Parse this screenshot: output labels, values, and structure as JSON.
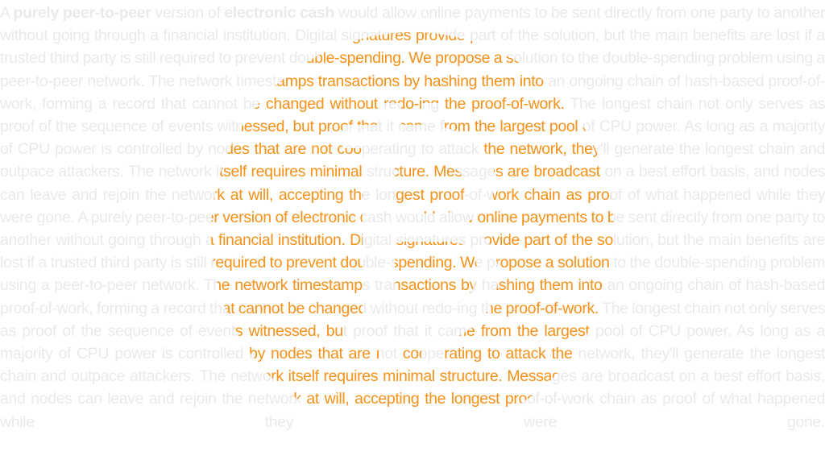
{
  "accent_color": "#f7931a",
  "muted_text_color": "#eaeaea",
  "logo_icon": "bitcoin-icon",
  "passage": {
    "lead": "A ",
    "bold1": "purely peer-to-peer",
    "mid1": " version of ",
    "bold2": "electronic cash",
    "rest1": " would allow online payments to be sent directly from one party to another without going through a financial institution. Digital signatures provide part of the solution, but the main benefits are lost if a trusted third party is still required to prevent double-spending. We propose a solution to the double-spending problem using a peer-to-peer network. The network timestamps transactions by hashing them into an ongoing chain of hash-based proof-of-work, forming a record that cannot be changed without redo-ing the proof-of-work. The longest chain not only serves as proof of the sequence of events witnessed, but proof that it came from the largest pool of CPU power. As long as a majority of CPU power is controlled by nodes that are not cooperating to attack the network, they'll generate the longest chain and outpace attackers. The network itself requires minimal structure. Messages are broadcast on a best effort basis, and nodes can leave and rejoin the network at will, accepting the longest proof-of-work chain as proof of what happened while they were gone.",
    "rest2": "A purely peer-to-peer version of electronic cash would allow online payments to be sent directly from one party to another without going through a financial institution. Digital signatures provide part of the solution, but the main benefits are lost if a trusted third party is still required to prevent double-spending. We propose a solution to the double-spending problem using a peer-to-peer network. The network timestamps transactions by hashing them into an ongoing chain of hash-based proof-of-work, forming a record that cannot be changed without redo-ing the proof-of-work. The longest chain not only serves as proof of the sequence of events witnessed, but proof that it came from the largest pool of CPU power. As long as a majority of CPU power is controlled by nodes that are not cooperating to attack the network, they'll generate the longest chain and outpace attackers. The network itself requires minimal structure. Messages are broadcast on a best effort basis, and nodes can leave and rejoin the network at will, accepting the longest proof-of-work chain as proof of what happened while they were gone."
  }
}
